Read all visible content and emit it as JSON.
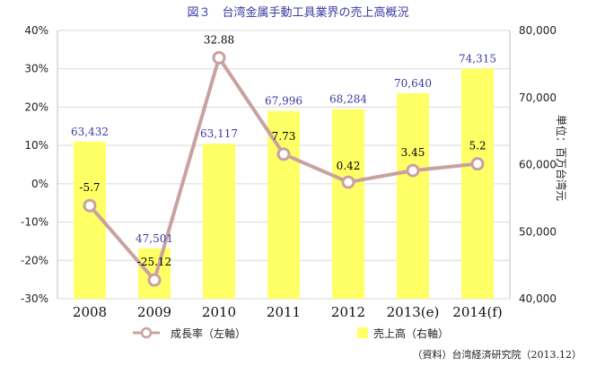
{
  "title": "図３　台湾金属手動工具業界の売上高概況",
  "unit_label": "単位：百万台湾元",
  "source": "（資料）台湾経済研究院（2013.12）",
  "legend": {
    "line_label": "成長率（左軸）",
    "bar_label": "売上高（右軸）"
  },
  "colors": {
    "bar": "#ffff66",
    "line": "#c9a1a1",
    "marker_fill": "#ffffff",
    "bar_label": "#3d3aa0",
    "line_label": "#000000",
    "title": "#3d3aa0"
  },
  "chart_data": {
    "type": "bar+line",
    "title": "図３　台湾金属手動工具業界の売上高概況",
    "categories": [
      "2008",
      "2009",
      "2010",
      "2011",
      "2012",
      "2013(e)",
      "2014(f)"
    ],
    "bar_series": {
      "name": "売上高（右軸）",
      "axis": "right",
      "values": [
        63432,
        47501,
        63117,
        67996,
        68284,
        70640,
        74315
      ],
      "labels": [
        "63,432",
        "47,501",
        "63,117",
        "67,996",
        "68,284",
        "70,640",
        "74,315"
      ]
    },
    "line_series": {
      "name": "成長率（左軸）",
      "axis": "left",
      "values": [
        -5.7,
        -25.12,
        32.88,
        7.73,
        0.42,
        3.45,
        5.2
      ],
      "labels": [
        "-5.7",
        "-25.12",
        "32.88",
        "7.73",
        "0.42",
        "3.45",
        "5.2"
      ]
    },
    "left_axis": {
      "range": [
        -30,
        40
      ],
      "ticks": [
        40,
        30,
        20,
        10,
        0,
        -10,
        -20,
        -30
      ],
      "tick_labels": [
        "40%",
        "30%",
        "20%",
        "10%",
        "0%",
        "-10%",
        "-20%",
        "-30%"
      ]
    },
    "right_axis": {
      "range": [
        40000,
        80000
      ],
      "ticks": [
        80000,
        70000,
        60000,
        50000,
        40000
      ],
      "tick_labels": [
        "80,000",
        "70,000",
        "60,000",
        "50,000",
        "40,000"
      ],
      "label": "単位：百万台湾元"
    },
    "grid": true,
    "legend_position": "bottom"
  }
}
